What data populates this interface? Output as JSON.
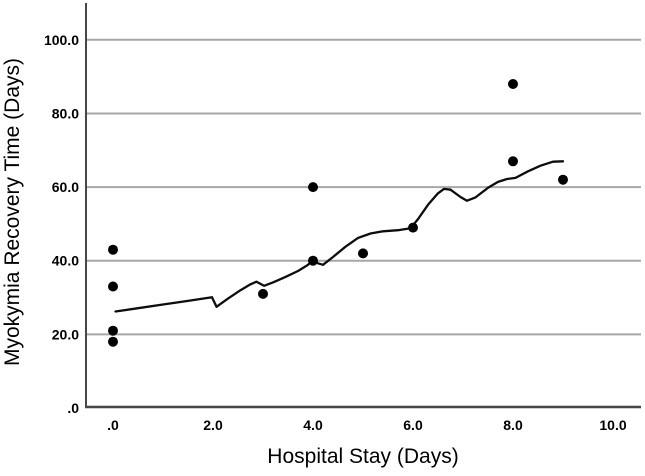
{
  "chart_data": {
    "type": "scatter",
    "title": "",
    "xlabel": "Hospital Stay (Days)",
    "ylabel": "Myokymia Recovery Time (Days)",
    "xlim": [
      -0.54,
      10.56
    ],
    "ylim": [
      0,
      110
    ],
    "grid": "horizontal",
    "legend": "none",
    "x_ticks": [
      0,
      2,
      4,
      6,
      8,
      10
    ],
    "x_tick_labels": [
      ".0",
      "2.0",
      "4.0",
      "6.0",
      "8.0",
      "10.0"
    ],
    "y_ticks": [
      0,
      20,
      40,
      60,
      80,
      100
    ],
    "y_tick_labels": [
      ".0",
      "20.0",
      "40.0",
      "60.0",
      "80.0",
      "100.0"
    ],
    "points": [
      [
        0,
        43
      ],
      [
        0,
        33
      ],
      [
        0,
        21
      ],
      [
        0,
        18
      ],
      [
        3,
        31
      ],
      [
        4,
        60
      ],
      [
        4,
        40
      ],
      [
        5,
        42
      ],
      [
        6,
        49
      ],
      [
        8,
        88
      ],
      [
        8,
        67
      ],
      [
        9,
        62
      ]
    ],
    "fit_line": [
      [
        0.05,
        26.2
      ],
      [
        0.5,
        27.1
      ],
      [
        1.0,
        28.1
      ],
      [
        1.5,
        29.1
      ],
      [
        1.98,
        30.1
      ],
      [
        2.07,
        27.5
      ],
      [
        2.3,
        29.7
      ],
      [
        2.55,
        32.0
      ],
      [
        2.75,
        33.6
      ],
      [
        2.87,
        34.3
      ],
      [
        3.02,
        33.2
      ],
      [
        3.2,
        34.1
      ],
      [
        3.45,
        35.6
      ],
      [
        3.7,
        37.2
      ],
      [
        3.9,
        38.9
      ],
      [
        4.0,
        40.2
      ],
      [
        4.1,
        39.3
      ],
      [
        4.2,
        38.9
      ],
      [
        4.4,
        41.0
      ],
      [
        4.65,
        43.8
      ],
      [
        4.9,
        46.2
      ],
      [
        5.15,
        47.4
      ],
      [
        5.4,
        48.0
      ],
      [
        5.7,
        48.3
      ],
      [
        5.95,
        48.8
      ],
      [
        6.1,
        51.3
      ],
      [
        6.3,
        55.2
      ],
      [
        6.5,
        58.3
      ],
      [
        6.62,
        59.5
      ],
      [
        6.75,
        59.3
      ],
      [
        6.95,
        57.3
      ],
      [
        7.08,
        56.3
      ],
      [
        7.25,
        57.2
      ],
      [
        7.5,
        59.8
      ],
      [
        7.7,
        61.4
      ],
      [
        7.88,
        62.2
      ],
      [
        8.05,
        62.5
      ],
      [
        8.3,
        64.3
      ],
      [
        8.55,
        65.8
      ],
      [
        8.8,
        66.9
      ],
      [
        9.0,
        67.0
      ]
    ],
    "colors": {
      "point": "#000000",
      "fit_line": "#0d0d0d",
      "grid": "#a7a7a7",
      "axis": "#474747",
      "text": "#000000",
      "background": "#ffffff"
    }
  }
}
